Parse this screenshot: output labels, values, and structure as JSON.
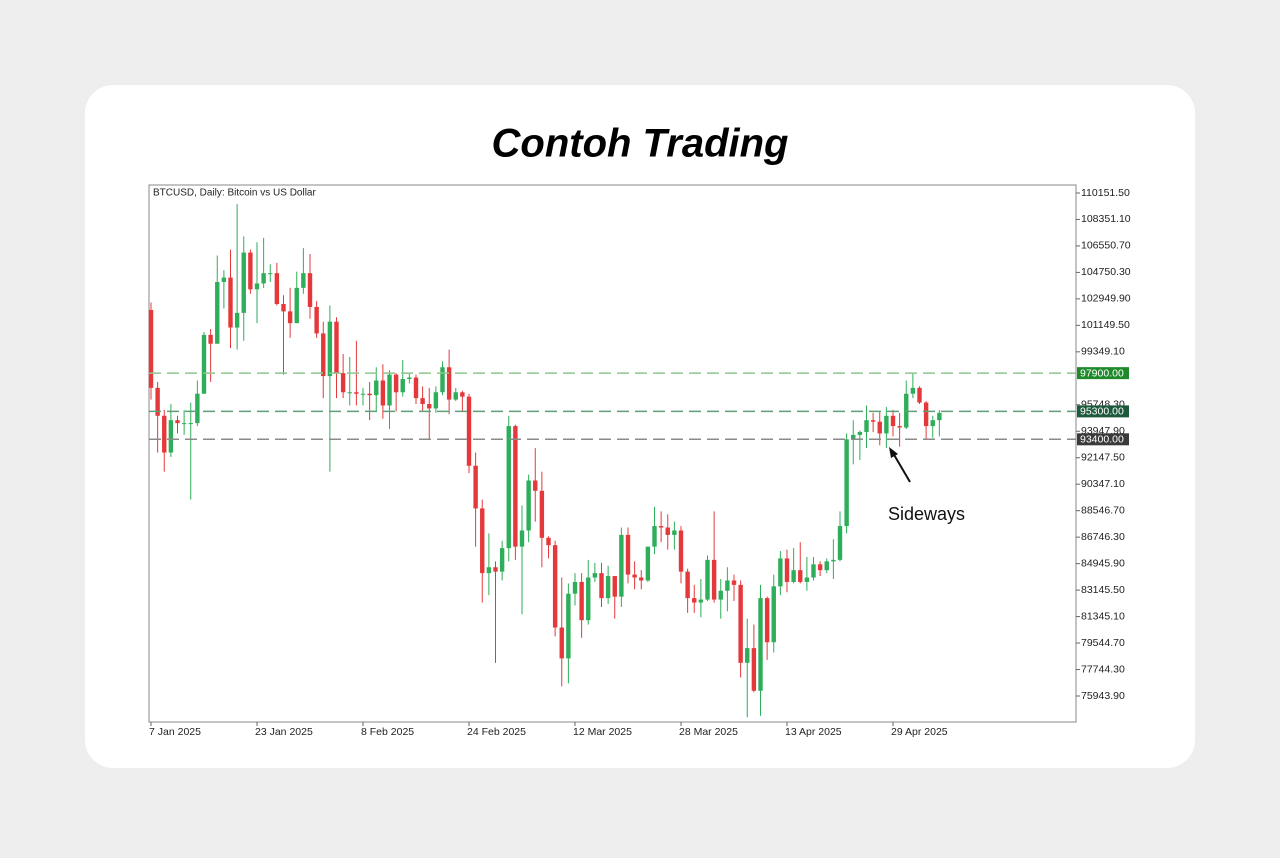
{
  "chart_data": {
    "type": "candlestick",
    "title": "Contoh Trading",
    "symbol_label": "BTCUSD, Daily:  Bitcoin vs US Dollar",
    "annotation": "Sideways",
    "categories": [
      "7 Jan 2025",
      null,
      null,
      null,
      null,
      null,
      null,
      null,
      null,
      null,
      null,
      null,
      null,
      null,
      null,
      null,
      "23 Jan 2025",
      null,
      null,
      null,
      null,
      null,
      null,
      null,
      null,
      null,
      null,
      null,
      null,
      null,
      null,
      null,
      "8 Feb 2025",
      null,
      null,
      null,
      null,
      null,
      null,
      null,
      null,
      null,
      null,
      null,
      null,
      null,
      null,
      null,
      "24 Feb 2025",
      null,
      null,
      null,
      null,
      null,
      null,
      null,
      null,
      null,
      null,
      null,
      null,
      null,
      null,
      null,
      "12 Mar 2025",
      null,
      null,
      null,
      null,
      null,
      null,
      null,
      null,
      null,
      null,
      null,
      null,
      null,
      null,
      null,
      "28 Mar 2025",
      null,
      null,
      null,
      null,
      null,
      null,
      null,
      null,
      null,
      null,
      null,
      null,
      null,
      null,
      null,
      "13 Apr 2025",
      null,
      null,
      null,
      null,
      null,
      null,
      null,
      null,
      null,
      null,
      null,
      null,
      null,
      null,
      null,
      "29 Apr 2025",
      null,
      null,
      null,
      null,
      null,
      null,
      null
    ],
    "open": [
      102200,
      96900,
      95000,
      92500,
      94700,
      94500,
      94500,
      94500,
      96500,
      100500,
      99900,
      104100,
      104400,
      101000,
      102000,
      106100,
      103600,
      104000,
      104700,
      104700,
      102600,
      102100,
      101300,
      103700,
      104700,
      102400,
      100600,
      97700,
      101400,
      97900,
      96600,
      96600,
      96500,
      96500,
      96400,
      97400,
      95700,
      97800,
      96600,
      97500,
      97600,
      96200,
      95800,
      95500,
      96600,
      98300,
      96100,
      96600,
      96300,
      91600,
      88700,
      84300,
      84700,
      84400,
      86000,
      94300,
      86100,
      87200,
      90600,
      89900,
      86700,
      86200,
      80600,
      78500,
      82900,
      83700,
      81100,
      84000,
      84300,
      82600,
      84100,
      82700,
      86900,
      84200,
      84000,
      83800,
      86100,
      87500,
      87400,
      86900,
      87200,
      84400,
      82600,
      82300,
      82500,
      85200,
      82500,
      83100,
      83800,
      83500,
      78200,
      79200,
      76300,
      82600,
      79600,
      83400,
      85300,
      83700,
      84500,
      83700,
      84000,
      84900,
      84500,
      85100,
      85200,
      87500,
      93400,
      93700,
      93900,
      94700,
      94600,
      93800,
      95000,
      94300,
      94200,
      96500,
      96900,
      95900,
      94300,
      94700
    ],
    "high": [
      102700,
      97300,
      95400,
      95800,
      95000,
      95400,
      95900,
      97400,
      100700,
      100900,
      105900,
      104900,
      106300,
      109400,
      107200,
      106300,
      106800,
      107100,
      105300,
      105400,
      103200,
      103700,
      104800,
      106400,
      106000,
      102800,
      101400,
      102500,
      101700,
      99200,
      99000,
      100100,
      96900,
      97300,
      98300,
      98500,
      98100,
      97900,
      98800,
      97900,
      97800,
      97000,
      96900,
      97000,
      98700,
      99500,
      96900,
      96700,
      96500,
      92500,
      89300,
      87000,
      85100,
      86500,
      95000,
      94400,
      88900,
      91000,
      92800,
      91200,
      86800,
      86500,
      84000,
      83600,
      84300,
      84300,
      85200,
      85000,
      85000,
      84800,
      84100,
      87400,
      87400,
      85100,
      84500,
      86100,
      88800,
      88500,
      88300,
      87800,
      87500,
      84600,
      83500,
      83900,
      85500,
      88500,
      83900,
      84700,
      84200,
      83800,
      81200,
      80800,
      83500,
      82700,
      84200,
      85800,
      85900,
      86000,
      86400,
      85400,
      85400,
      85100,
      85300,
      86600,
      88500,
      93800,
      94700,
      94000,
      95700,
      95200,
      95300,
      95600,
      95400,
      95200,
      97400,
      97900,
      97000,
      96000,
      95000,
      95400
    ],
    "low": [
      96100,
      92500,
      91200,
      92200,
      93800,
      93700,
      89300,
      94300,
      96500,
      97300,
      99900,
      102300,
      99600,
      99500,
      100100,
      103300,
      101300,
      103700,
      104100,
      102500,
      97800,
      100300,
      101300,
      103300,
      101600,
      100300,
      96200,
      91200,
      96200,
      96200,
      95700,
      95700,
      95700,
      94700,
      95300,
      94800,
      94100,
      95300,
      96300,
      97200,
      95800,
      95300,
      93400,
      95200,
      96400,
      95100,
      96000,
      95300,
      91100,
      86100,
      82300,
      82800,
      78200,
      83800,
      85100,
      85200,
      81500,
      86400,
      87800,
      84700,
      85300,
      80000,
      76600,
      76800,
      82100,
      79900,
      80800,
      83700,
      82000,
      82200,
      81200,
      82000,
      83600,
      83200,
      83200,
      83700,
      85600,
      86400,
      85900,
      85900,
      83600,
      81600,
      81600,
      81300,
      82400,
      82300,
      81200,
      81700,
      82400,
      77200,
      74500,
      76200,
      74600,
      78400,
      78900,
      82800,
      83000,
      83600,
      83600,
      83100,
      83800,
      84100,
      84300,
      83900,
      85100,
      87000,
      91700,
      92000,
      92800,
      93900,
      93000,
      92800,
      93600,
      92900,
      94100,
      96200,
      95800,
      93400,
      93500,
      93600
    ],
    "close": [
      96900,
      95000,
      92500,
      94700,
      94500,
      94500,
      94500,
      96500,
      100500,
      99900,
      104100,
      104400,
      101000,
      102000,
      106100,
      103600,
      104000,
      104700,
      104700,
      102600,
      102100,
      101300,
      103700,
      104700,
      102400,
      100600,
      97700,
      101400,
      97900,
      96600,
      96600,
      96500,
      96500,
      96400,
      97400,
      95700,
      97800,
      96600,
      97500,
      97600,
      96200,
      95800,
      95500,
      96600,
      98300,
      96100,
      96600,
      96300,
      91600,
      88700,
      84300,
      84700,
      84400,
      86000,
      94300,
      86100,
      87200,
      90600,
      89900,
      86700,
      86200,
      80600,
      78500,
      82900,
      83700,
      81100,
      84000,
      84300,
      82600,
      84100,
      82700,
      86900,
      84200,
      84000,
      83800,
      86100,
      87500,
      87400,
      86900,
      87200,
      84400,
      82600,
      82300,
      82500,
      85200,
      82500,
      83100,
      83800,
      83500,
      78200,
      79200,
      76300,
      82600,
      79600,
      83400,
      85300,
      83700,
      84500,
      83700,
      84000,
      84900,
      84500,
      85100,
      85200,
      87500,
      93400,
      93700,
      93900,
      94700,
      94600,
      93800,
      95000,
      94300,
      94200,
      96500,
      96900,
      95900,
      94300,
      94700,
      95200
    ],
    "up_color": "#2eae5a",
    "down_color": "#e5383b",
    "ylim": [
      74175,
      110695
    ],
    "yticks": [
      {
        "value": 110151.5,
        "label": "110151.50"
      },
      {
        "value": 108351.1,
        "label": "108351.10"
      },
      {
        "value": 106550.7,
        "label": "106550.70"
      },
      {
        "value": 104750.3,
        "label": "104750.30"
      },
      {
        "value": 102949.9,
        "label": "102949.90"
      },
      {
        "value": 101149.5,
        "label": "101149.50"
      },
      {
        "value": 99349.1,
        "label": "99349.10"
      },
      {
        "value": 95748.3,
        "label": "95748.30"
      },
      {
        "value": 93947.9,
        "label": "93947.90"
      },
      {
        "value": 92147.5,
        "label": "92147.50"
      },
      {
        "value": 90347.1,
        "label": "90347.10"
      },
      {
        "value": 88546.7,
        "label": "88546.70"
      },
      {
        "value": 86746.3,
        "label": "86746.30"
      },
      {
        "value": 84945.9,
        "label": "84945.90"
      },
      {
        "value": 83145.5,
        "label": "83145.50"
      },
      {
        "value": 81345.1,
        "label": "81345.10"
      },
      {
        "value": 79544.7,
        "label": "79544.70"
      },
      {
        "value": 77744.3,
        "label": "77744.30"
      },
      {
        "value": 75943.9,
        "label": "75943.90"
      }
    ],
    "levels": [
      {
        "value": 97900,
        "label": "97900.00",
        "color": "#8cc68c",
        "label_color": "#1f8a2a"
      },
      {
        "value": 95300,
        "label": "95300.00",
        "color": "#5f9f7a",
        "label_color": "#1d5a3c"
      },
      {
        "value": 93400,
        "label": "93400.00",
        "color": "#8a8a8a",
        "label_color": "#3a3a3a"
      }
    ]
  }
}
